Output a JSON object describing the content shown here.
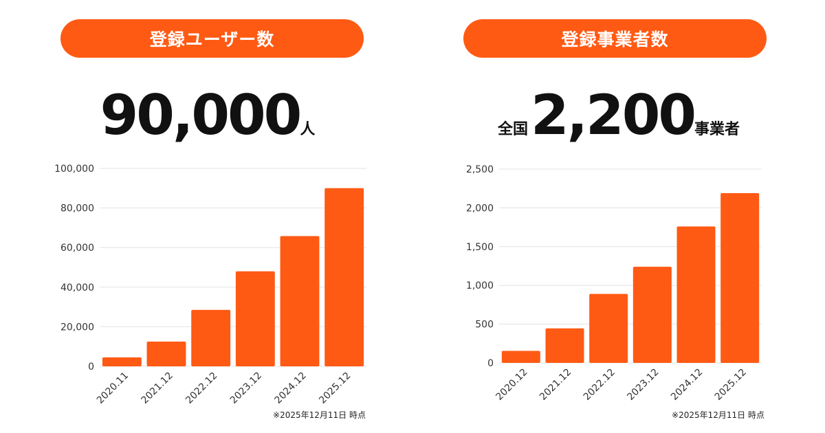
{
  "accent_color": "#ff5a14",
  "left": {
    "pill_label": "登録ユーザー数",
    "headline": {
      "prefix": "",
      "number": "90,000",
      "unit": "人"
    },
    "note": "※2025年12月11日 時点"
  },
  "right": {
    "pill_label": "登録事業者数",
    "headline": {
      "prefix": "全国",
      "number": "2,200",
      "unit": "事業者"
    },
    "note": "※2025年12月11日 時点"
  },
  "chart_data": [
    {
      "type": "bar",
      "title": "",
      "xlabel": "",
      "ylabel": "",
      "categories": [
        "2020.11",
        "2021.12",
        "2022.12",
        "2023.12",
        "2024.12",
        "2025.12"
      ],
      "values": [
        4500,
        12500,
        28500,
        48000,
        65800,
        90000
      ],
      "ylim": [
        0,
        100000
      ],
      "yticks": [
        0,
        20000,
        40000,
        60000,
        80000,
        100000
      ],
      "ytick_labels": [
        "0",
        "20,000",
        "40,000",
        "60,000",
        "80,000",
        "100,000"
      ],
      "grid": true,
      "legend": "none",
      "color": "#ff5a14"
    },
    {
      "type": "bar",
      "title": "",
      "xlabel": "",
      "ylabel": "",
      "categories": [
        "2020.12",
        "2021.12",
        "2022.12",
        "2023.12",
        "2024.12",
        "2025.12"
      ],
      "values": [
        155,
        445,
        890,
        1240,
        1760,
        2190
      ],
      "ylim": [
        0,
        2500
      ],
      "yticks": [
        0,
        500,
        1000,
        1500,
        2000,
        2500
      ],
      "ytick_labels": [
        "0",
        "500",
        "1,000",
        "1,500",
        "2,000",
        "2,500"
      ],
      "grid": true,
      "legend": "none",
      "color": "#ff5a14"
    }
  ]
}
